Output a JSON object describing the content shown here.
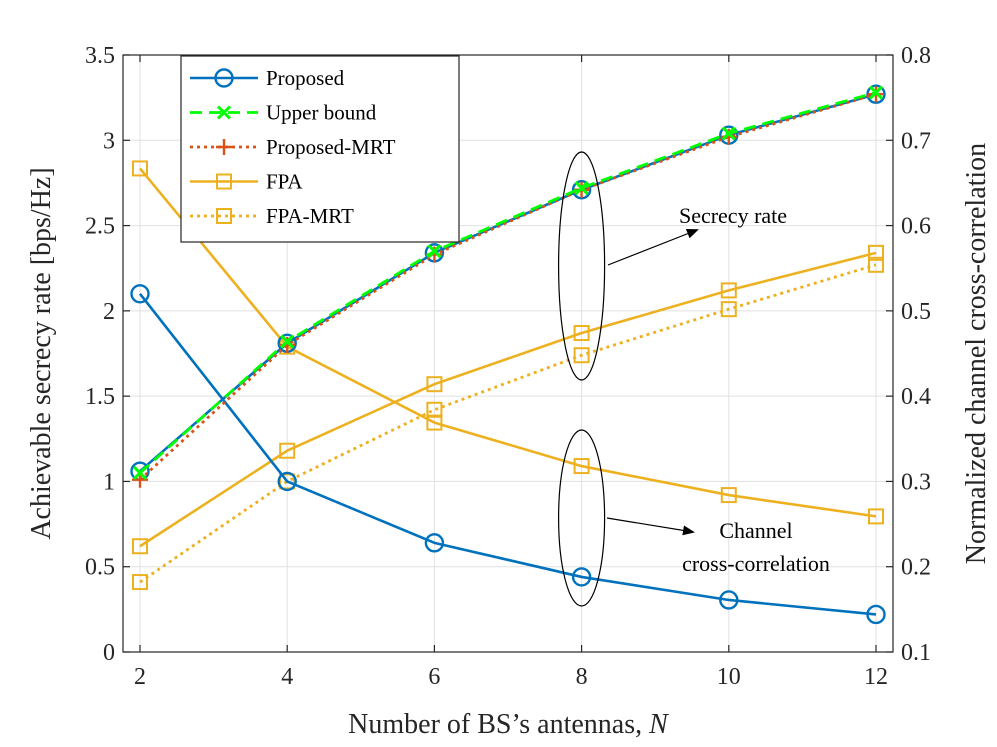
{
  "chart_data": {
    "type": "line",
    "x": [
      2,
      4,
      6,
      8,
      10,
      12
    ],
    "xlabel": "Number of BS’s antennas, ",
    "xlabel_var": "N",
    "xlim": [
      2,
      12
    ],
    "xticks": [
      "2",
      "4",
      "6",
      "8",
      "10",
      "12"
    ],
    "left_axis": {
      "label": "Achievable secrecy rate [bps/Hz]",
      "lim": [
        0,
        3.5
      ],
      "ticks": [
        0,
        0.5,
        1,
        1.5,
        2,
        2.5,
        3,
        3.5
      ],
      "tick_labels": [
        "0",
        "0.5",
        "1",
        "1.5",
        "2",
        "2.5",
        "3",
        "3.5"
      ]
    },
    "right_axis": {
      "label": "Normalized channel cross-correlation",
      "lim": [
        0.1,
        0.8
      ],
      "ticks": [
        0.1,
        0.2,
        0.3,
        0.4,
        0.5,
        0.6,
        0.7,
        0.8
      ],
      "tick_labels": [
        "0.1",
        "0.2",
        "0.3",
        "0.4",
        "0.5",
        "0.6",
        "0.7",
        "0.8"
      ]
    },
    "grid": true,
    "legend_position": "top-left",
    "series": [
      {
        "id": "proposed-rate",
        "name": "Proposed",
        "axis": "left",
        "values": [
          1.06,
          1.81,
          2.34,
          2.71,
          3.03,
          3.27
        ],
        "color": "#0072BD",
        "dash": "solid",
        "marker": "circle"
      },
      {
        "id": "upper-bound-rate",
        "name": "Upper bound",
        "axis": "left",
        "values": [
          1.05,
          1.82,
          2.35,
          2.72,
          3.04,
          3.28
        ],
        "color": "#00FF00",
        "dash": "dashed",
        "marker": "x"
      },
      {
        "id": "proposed-mrt-rate",
        "name": "Proposed-MRT",
        "axis": "left",
        "values": [
          1.01,
          1.8,
          2.33,
          2.71,
          3.02,
          3.27
        ],
        "color": "#D95319",
        "dash": "dotted",
        "marker": "plus"
      },
      {
        "id": "fpa-rate",
        "name": "FPA",
        "axis": "left",
        "values": [
          0.62,
          1.18,
          1.57,
          1.87,
          2.12,
          2.34
        ],
        "color": "#EDB120",
        "dash": "solid",
        "marker": "square"
      },
      {
        "id": "fpa-mrt-rate",
        "name": "FPA-MRT",
        "axis": "left",
        "values": [
          0.41,
          1.0,
          1.42,
          1.74,
          2.01,
          2.27
        ],
        "color": "#EDB120",
        "dash": "dotted",
        "marker": "square"
      },
      {
        "id": "proposed-correlation",
        "name": "Proposed",
        "axis": "right",
        "values": [
          0.52,
          0.3,
          0.228,
          0.188,
          0.161,
          0.144
        ],
        "color": "#0072BD",
        "dash": "solid",
        "marker": "circle"
      },
      {
        "id": "fpa-correlation",
        "name": "FPA",
        "axis": "right",
        "values": [
          0.667,
          0.458,
          0.369,
          0.318,
          0.284,
          0.259
        ],
        "color": "#EDB120",
        "dash": "solid",
        "marker": "square"
      }
    ],
    "legend": [
      "Proposed",
      "Upper bound",
      "Proposed-MRT",
      "FPA",
      "FPA-MRT"
    ],
    "annotations": [
      {
        "id": "secrecy",
        "lines": [
          "Secrecy rate"
        ]
      },
      {
        "id": "correlation",
        "lines": [
          "Channel",
          "cross-correlation"
        ]
      }
    ]
  }
}
